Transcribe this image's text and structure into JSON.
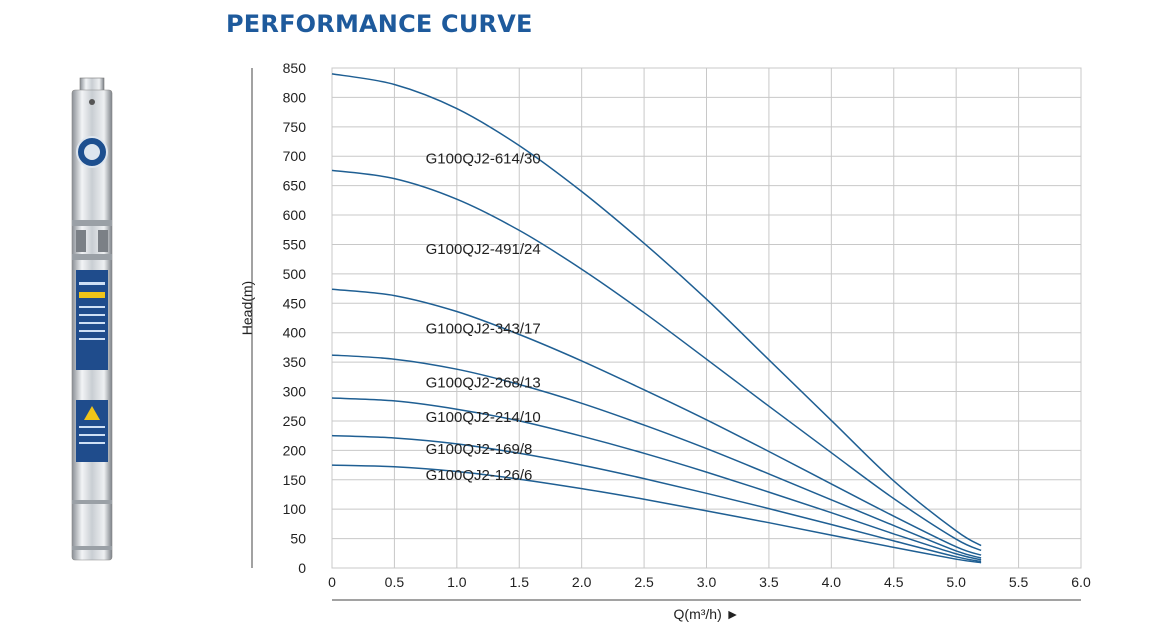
{
  "title": "PERFORMANCE CURVE",
  "chart_data": {
    "type": "line",
    "ylabel": "Head(m)",
    "xlabel": "Q(m³/h) ►",
    "xlim": [
      0,
      6.0
    ],
    "ylim": [
      0,
      850
    ],
    "grid": true,
    "xticks": [
      "0",
      "0.5",
      "1.0",
      "1.5",
      "2.0",
      "2.5",
      "3.0",
      "3.5",
      "4.0",
      "4.5",
      "5.0",
      "5.5",
      "6.0"
    ],
    "yticks": [
      "0",
      "50",
      "100",
      "150",
      "200",
      "250",
      "300",
      "350",
      "400",
      "450",
      "500",
      "550",
      "600",
      "650",
      "700",
      "750",
      "800",
      "850"
    ],
    "colors": {
      "curve": "#1f5f93",
      "grid": "#c8c8c8",
      "axis": "#444444",
      "title": "#1e5a9c"
    },
    "series": [
      {
        "name": "G100QJ2-614/30",
        "x": [
          0,
          0.5,
          1.0,
          1.5,
          2.0,
          2.5,
          3.0,
          3.5,
          4.0,
          4.5,
          5.0,
          5.2
        ],
        "y": [
          840,
          822,
          781,
          718,
          640,
          552,
          457,
          354,
          251,
          148,
          63,
          38
        ]
      },
      {
        "name": "G100QJ2-491/24",
        "x": [
          0,
          0.5,
          1.0,
          1.5,
          2.0,
          2.5,
          3.0,
          3.5,
          4.0,
          4.5,
          5.0,
          5.2
        ],
        "y": [
          676,
          662,
          627,
          574,
          508,
          434,
          355,
          275,
          196,
          118,
          49,
          30
        ]
      },
      {
        "name": "G100QJ2-343/17",
        "x": [
          0,
          0.5,
          1.0,
          1.5,
          2.0,
          2.5,
          3.0,
          3.5,
          4.0,
          4.5,
          5.0,
          5.2
        ],
        "y": [
          474,
          463,
          436,
          397,
          352,
          303,
          252,
          198,
          143,
          88,
          36,
          22
        ]
      },
      {
        "name": "G100QJ2-268/13",
        "x": [
          0,
          0.5,
          1.0,
          1.5,
          2.0,
          2.5,
          3.0,
          3.5,
          4.0,
          4.5,
          5.0,
          5.2
        ],
        "y": [
          362,
          355,
          338,
          312,
          280,
          243,
          203,
          160,
          116,
          72,
          29,
          17
        ]
      },
      {
        "name": "G100QJ2-214/10",
        "x": [
          0,
          0.5,
          1.0,
          1.5,
          2.0,
          2.5,
          3.0,
          3.5,
          4.0,
          4.5,
          5.0,
          5.2
        ],
        "y": [
          289,
          284,
          270,
          250,
          224,
          195,
          163,
          129,
          94,
          58,
          24,
          14
        ]
      },
      {
        "name": "G100QJ2-169/8",
        "x": [
          0,
          0.5,
          1.0,
          1.5,
          2.0,
          2.5,
          3.0,
          3.5,
          4.0,
          4.5,
          5.0,
          5.2
        ],
        "y": [
          225,
          221,
          211,
          195,
          175,
          152,
          127,
          101,
          74,
          46,
          19,
          11
        ]
      },
      {
        "name": "G100QJ2-126/6",
        "x": [
          0,
          0.5,
          1.0,
          1.5,
          2.0,
          2.5,
          3.0,
          3.5,
          4.0,
          4.5,
          5.0,
          5.2
        ],
        "y": [
          175,
          172,
          164,
          151,
          135,
          117,
          97,
          77,
          56,
          35,
          15,
          9
        ]
      }
    ],
    "curve_label_positions": [
      {
        "x": 0.75,
        "y": 688
      },
      {
        "x": 0.75,
        "y": 534
      },
      {
        "x": 0.75,
        "y": 399
      },
      {
        "x": 0.75,
        "y": 307
      },
      {
        "x": 0.75,
        "y": 248
      },
      {
        "x": 0.75,
        "y": 194
      },
      {
        "x": 0.75,
        "y": 150
      }
    ]
  }
}
